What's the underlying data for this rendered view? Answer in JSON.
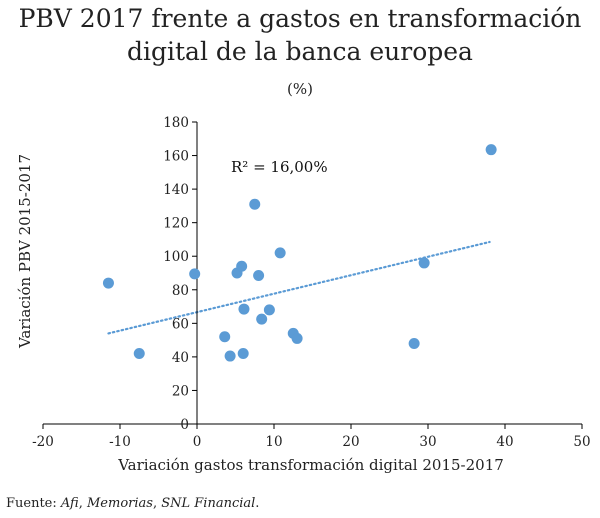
{
  "title_line1": "PBV 2017 frente a gastos en transformación",
  "title_line2": "digital de la banca europea",
  "subtitle": "(%)",
  "source": {
    "prefix": "Fuente: ",
    "items": [
      "Afi",
      "Memorias",
      "SNL Financial"
    ],
    "separator": ", ",
    "suffix": "."
  },
  "colors": {
    "points": "#5b9bd5",
    "trendline": "#5b9bd5",
    "axis": "#000000"
  },
  "chart_data": {
    "type": "scatter",
    "title": "PBV 2017 frente a gastos en transformación digital de la banca europea",
    "subtitle": "(%)",
    "xlabel": "Variación gastos transformación digital 2015-2017",
    "ylabel": "Variación PBV 2015-2017",
    "xlim": [
      -20,
      50
    ],
    "ylim": [
      0,
      180
    ],
    "xticks": [
      "-20",
      "-10",
      "0",
      "10",
      "20",
      "30",
      "40",
      "50"
    ],
    "yticks": [
      "0",
      "20",
      "40",
      "60",
      "80",
      "100",
      "120",
      "140",
      "160",
      "180"
    ],
    "grid": false,
    "annotation": "R² = 16,00%",
    "trendline": {
      "type": "linear",
      "x": [
        -11.5,
        38
      ],
      "y": [
        54,
        108.5
      ]
    },
    "points": [
      {
        "x": -11.5,
        "y": 84
      },
      {
        "x": -7.5,
        "y": 42
      },
      {
        "x": -0.3,
        "y": 89.5
      },
      {
        "x": 3.6,
        "y": 52
      },
      {
        "x": 4.3,
        "y": 40.5
      },
      {
        "x": 5.2,
        "y": 90
      },
      {
        "x": 5.8,
        "y": 94
      },
      {
        "x": 6.0,
        "y": 42
      },
      {
        "x": 6.1,
        "y": 68.5
      },
      {
        "x": 7.5,
        "y": 131
      },
      {
        "x": 8.0,
        "y": 88.5
      },
      {
        "x": 8.4,
        "y": 62.5
      },
      {
        "x": 9.4,
        "y": 68
      },
      {
        "x": 10.8,
        "y": 102
      },
      {
        "x": 12.5,
        "y": 54
      },
      {
        "x": 13.0,
        "y": 51
      },
      {
        "x": 28.2,
        "y": 48
      },
      {
        "x": 29.5,
        "y": 96
      },
      {
        "x": 38.2,
        "y": 163.5
      }
    ]
  }
}
